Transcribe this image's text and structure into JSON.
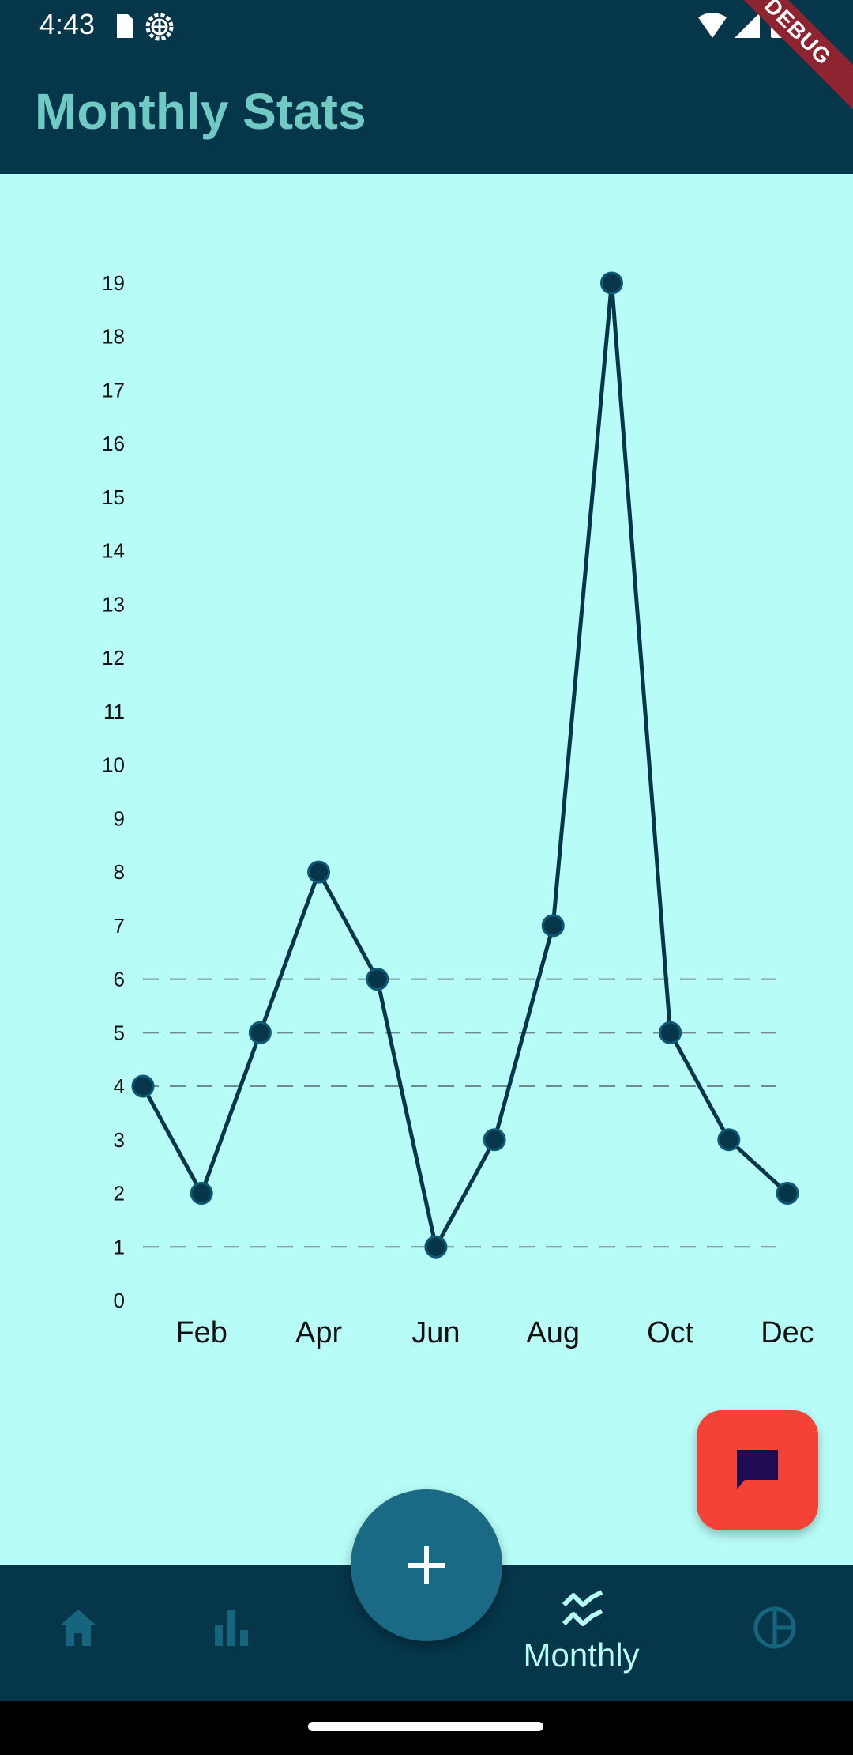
{
  "status": {
    "time": "4:43"
  },
  "debug_banner": "DEBUG",
  "app_bar": {
    "title": "Monthly Stats"
  },
  "chart_data": {
    "type": "line",
    "x": [
      1,
      2,
      3,
      4,
      5,
      6,
      7,
      8,
      9,
      10,
      11,
      12
    ],
    "y": [
      4,
      2,
      5,
      8,
      6,
      1,
      3,
      7,
      19,
      5,
      3,
      2
    ],
    "x_tick_labels": [
      "Feb",
      "Apr",
      "Jun",
      "Aug",
      "Oct",
      "Dec"
    ],
    "x_tick_positions": [
      2,
      4,
      6,
      8,
      10,
      12
    ],
    "y_ticks": [
      0,
      1,
      2,
      3,
      4,
      5,
      6,
      7,
      8,
      9,
      10,
      11,
      12,
      13,
      14,
      15,
      16,
      17,
      18,
      19
    ],
    "ylim": [
      0,
      19
    ],
    "xlim": [
      1,
      12
    ],
    "dashed_gridlines_y": [
      1,
      4,
      5,
      6
    ],
    "title": "",
    "xlabel": "",
    "ylabel": "",
    "line_color": "#07354A",
    "point_color": "#07354A"
  },
  "bottom_nav": {
    "items": [
      {
        "icon": "home-icon",
        "label": ""
      },
      {
        "icon": "bar-chart-icon",
        "label": ""
      },
      {
        "icon": "line-chart-icon",
        "label": "Monthly",
        "active": true
      },
      {
        "icon": "pie-chart-icon",
        "label": ""
      }
    ]
  },
  "colors": {
    "background": "#B8FCF7",
    "app_bar": "#05364A",
    "title": "#6FCAC4",
    "fab_add": "#1A6A86",
    "fab_chat": "#F44236",
    "chat_icon": "#1E0B52"
  }
}
